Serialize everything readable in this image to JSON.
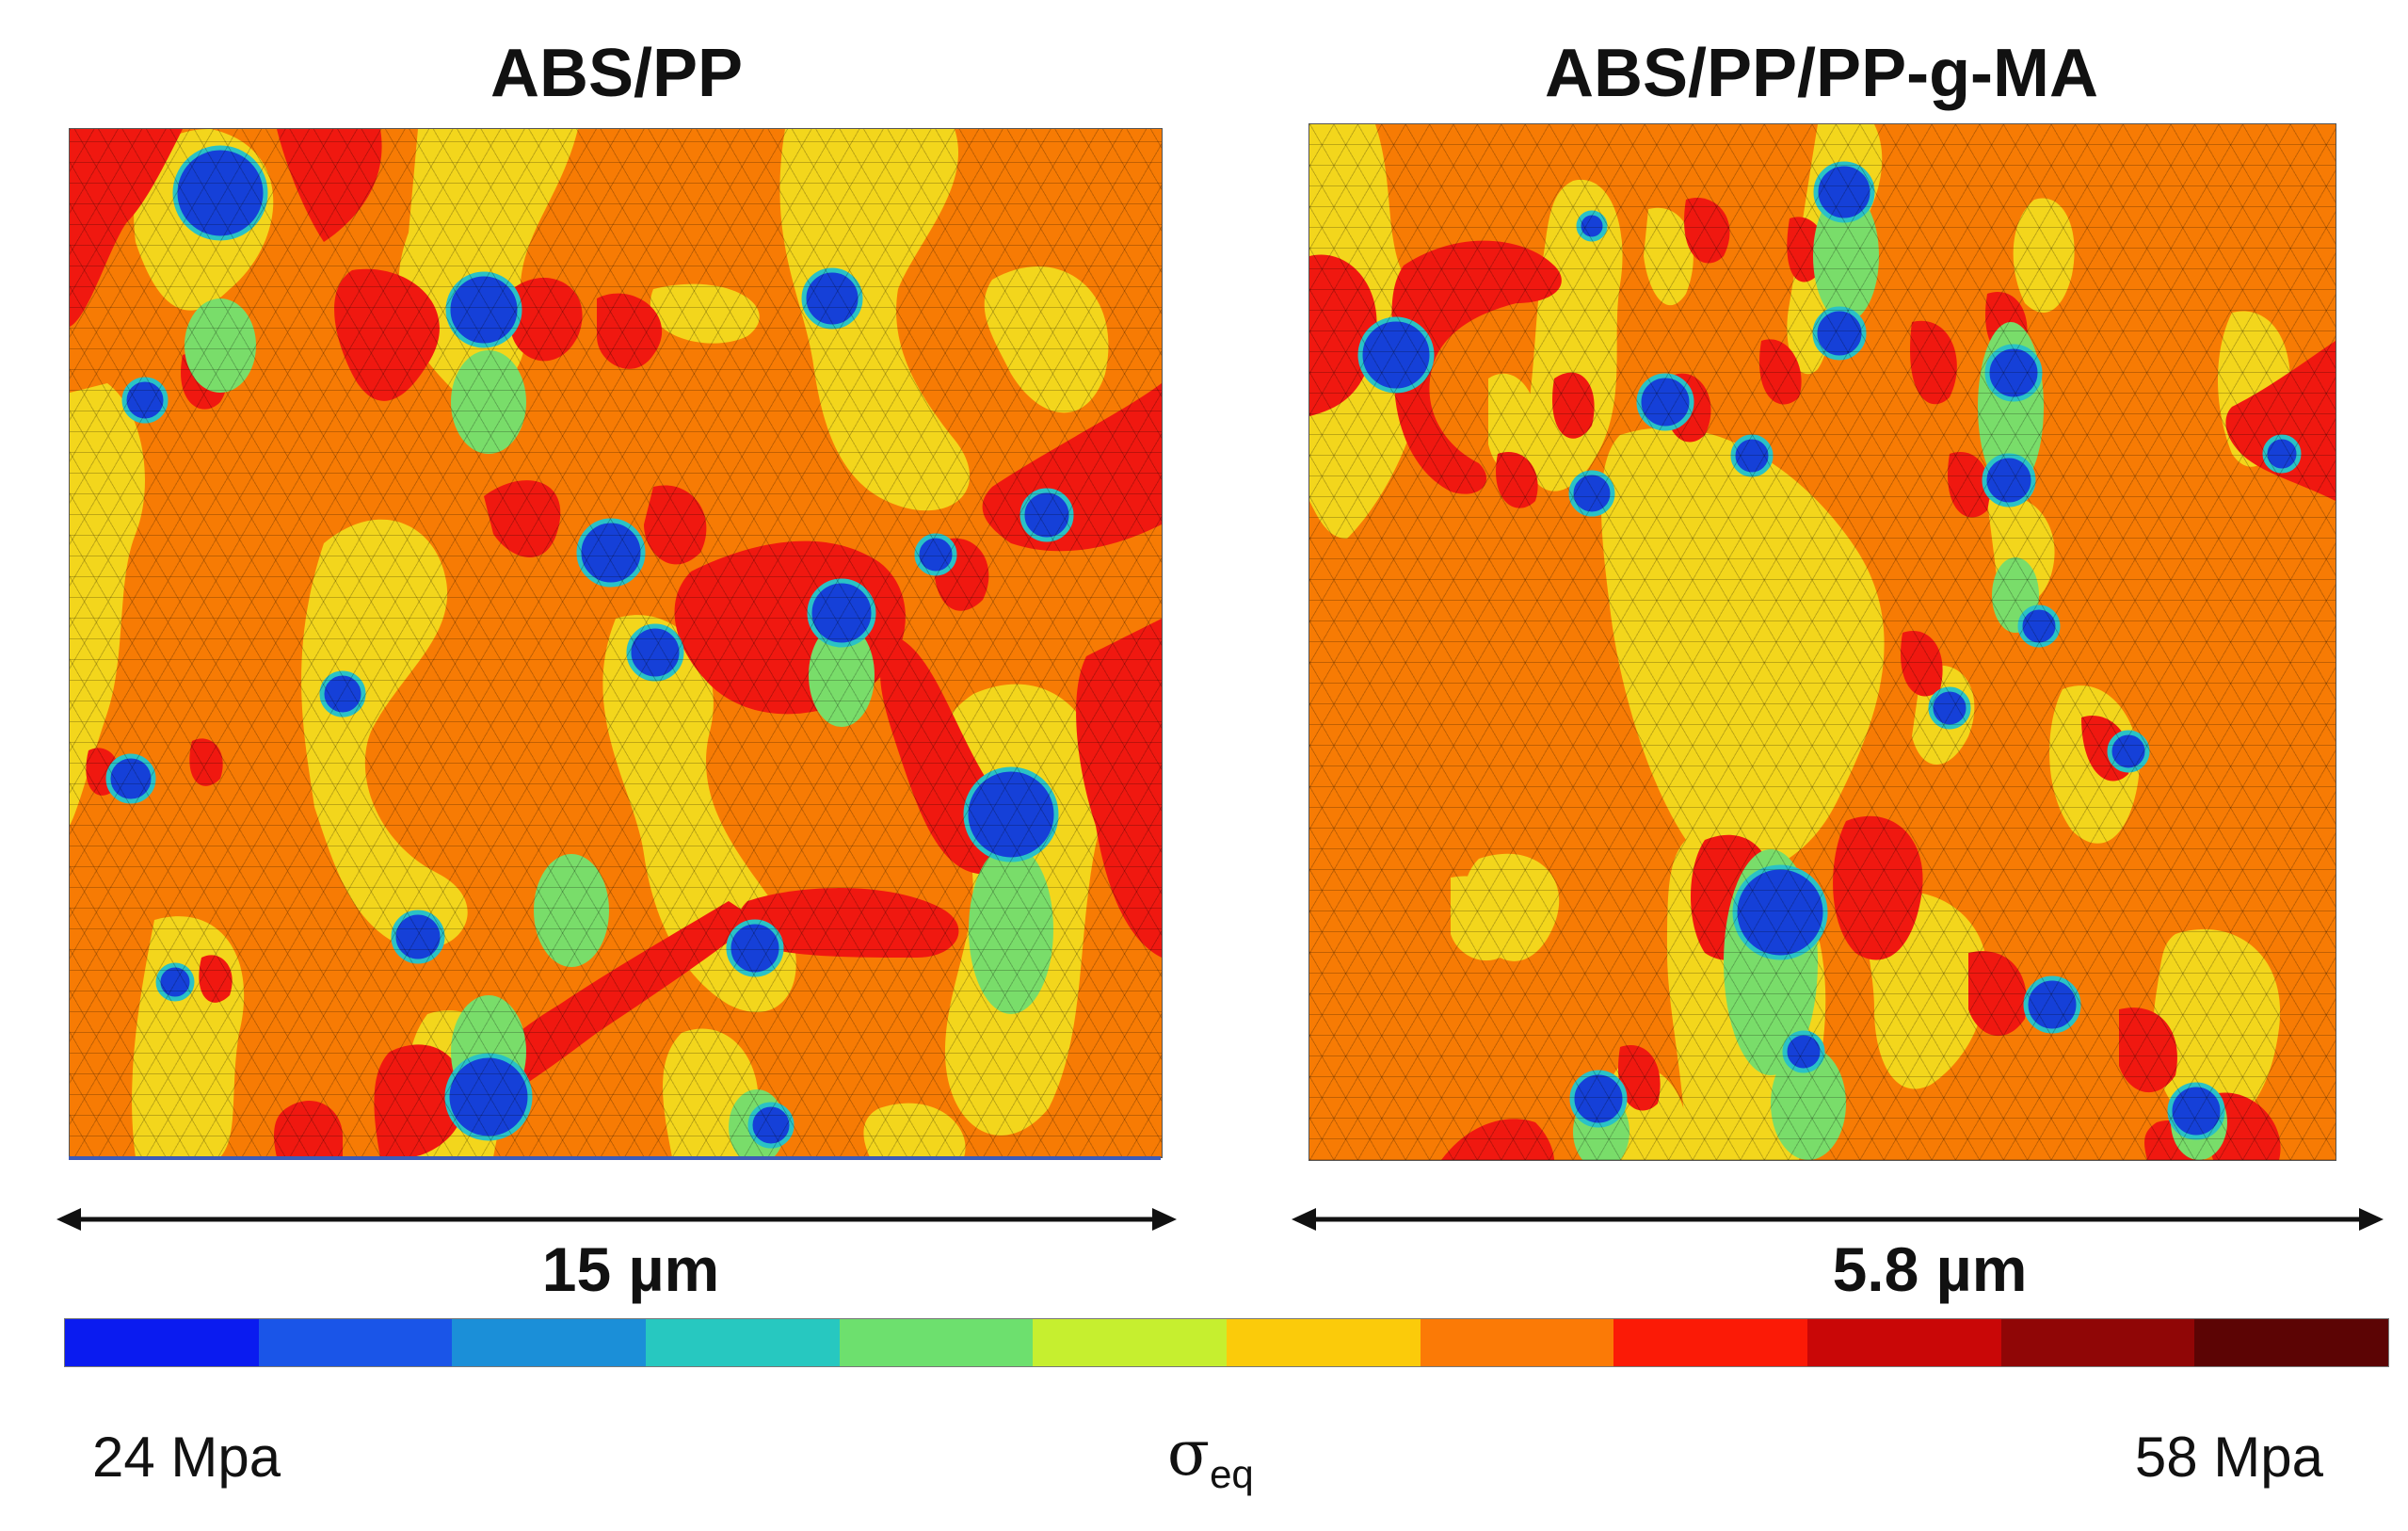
{
  "panels": {
    "left": {
      "title": "ABS/PP",
      "scale_bar": "15 µm"
    },
    "right": {
      "title": "ABS/PP/PP-g-MA",
      "scale_bar": "5.8  µm"
    }
  },
  "colorbar": {
    "min_label": "24 Mpa",
    "max_label": "58 Mpa",
    "symbol": "σ",
    "symbol_subscript": "eq",
    "colors": [
      "#0a1bf0",
      "#1a55e8",
      "#1b8fd8",
      "#27c8c0",
      "#6de06e",
      "#c6ef2f",
      "#fbcb0a",
      "#fb7a06",
      "#fb1a06",
      "#c90707",
      "#900606",
      "#5c0404"
    ]
  },
  "fill_colors": {
    "matrix": "#f77b04",
    "low_stress": "#f3d61c",
    "high_stress": "#f01810",
    "particle": "#1540d8",
    "particle_edge": "#2ac2c6",
    "transition": "#79dd6a"
  }
}
